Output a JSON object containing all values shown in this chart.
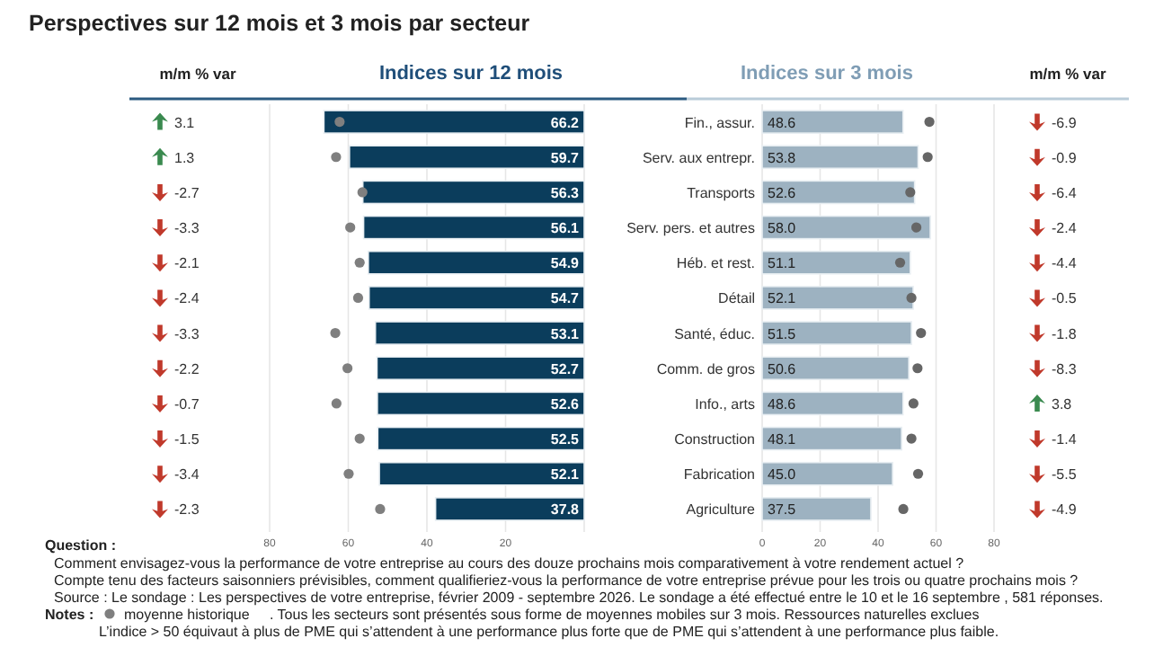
{
  "chart_data": [
    {
      "type": "other",
      "title": "Perspectives sur 12 mois et 3 mois par secteur",
      "annotations": [
        "Question :",
        "Comment envisagez-vous la performance de votre entreprise au cours des douze prochains mois comparativement à votre rendement actuel ?",
        "Compte tenu des facteurs saisonniers prévisibles, comment qualifieriez-vous la performance  de votre entreprise prévue pour les trois ou quatre prochains mois ?",
        "Source : Le sondage : Les perspectives de votre entreprise, février 2009 - septembre 2026. Le sondage a été effectué entre le 10 et le 16 septembre , 581 réponses.",
        "Notes :",
        ". Tous les secteurs sont présentés sous forme de moyennes mobiles sur 3 mois. Ressources naturelles exclues",
        "L’indice > 50 équivaut à plus de PME qui s’attendent à une performance plus forte que de PME qui s’attendent à une performance plus faible."
      ]
    },
    {
      "type": "other",
      "title": "m/m % var",
      "data_labels": true,
      "values": [
        3.1,
        1.3,
        -2.7,
        -3.3,
        -2.1,
        -2.4,
        -3.3,
        -2.2,
        -0.7,
        -1.5,
        -3.4,
        -2.3
      ],
      "colors": [
        "#3a8a4f",
        "#3a8a4f",
        "#c0392b",
        "#c0392b",
        "#c0392b",
        "#c0392b",
        "#c0392b",
        "#c0392b",
        "#c0392b",
        "#c0392b",
        "#c0392b",
        "#c0392b"
      ]
    },
    {
      "type": "bar",
      "orientation": "horizontal",
      "title": "Indices sur 12 mois",
      "xlim": [
        80,
        0
      ],
      "xticks": [
        80,
        60,
        40,
        20,
        {
          "value": 0,
          "label": null
        }
      ],
      "grid": "x",
      "marker": "circle",
      "legend": "bottom left",
      "series": [
        {
          "color": "#0b3d5c",
          "values": [
            66.2,
            59.7,
            56.3,
            56.1,
            54.9,
            54.7,
            53.1,
            52.7,
            52.6,
            52.5,
            52.1,
            37.8
          ],
          "value_labels": [
            "66.2",
            "59.7",
            "56.3",
            "56.1",
            "54.9",
            "54.7",
            "53.1",
            "52.7",
            "52.6",
            "52.5",
            "52.1",
            "37.8"
          ]
        },
        {
          "type": "scatter",
          "name": "moyenne historique",
          "color": "#7f7f7f",
          "values": [
            62.2,
            63.1,
            56.4,
            59.5,
            57.1,
            57.5,
            63.3,
            60.2,
            63.0,
            57.1,
            59.9,
            51.9
          ]
        }
      ]
    },
    {
      "type": "bar",
      "orientation": "horizontal",
      "title": "Indices sur 3 mois",
      "categories": [
        "Fin., assur.",
        "Serv. aux entrepr.",
        "Transports",
        "Serv. pers. et autres",
        "Héb. et rest.",
        "Détail",
        "Santé, éduc.",
        "Comm. de gros",
        "Info., arts",
        "Construction",
        "Fabrication",
        "Agriculture"
      ],
      "xlim": [
        0,
        80
      ],
      "xticks": [
        0,
        20,
        40,
        60,
        80
      ],
      "grid": "x",
      "marker": "circle",
      "series": [
        {
          "color": "#9db2c1",
          "values": [
            48.6,
            53.8,
            52.6,
            58.0,
            51.1,
            52.1,
            51.5,
            50.6,
            48.6,
            48.1,
            45.0,
            37.5
          ],
          "value_labels": [
            "48.6",
            "53.8",
            "52.6",
            "58.0",
            "51.1",
            "52.1",
            "51.5",
            "50.6",
            "48.6",
            "48.1",
            "45.0",
            "37.5"
          ]
        },
        {
          "type": "scatter",
          "color": "#666666",
          "values": [
            57.7,
            57.1,
            51.1,
            53.2,
            47.6,
            51.5,
            54.8,
            53.6,
            52.2,
            51.5,
            53.8,
            48.7
          ]
        }
      ]
    },
    {
      "type": "other",
      "title": "m/m % var",
      "data_labels": true,
      "values": [
        -6.9,
        -0.9,
        -6.4,
        -2.4,
        -4.4,
        -0.5,
        -1.8,
        -8.3,
        3.8,
        -1.4,
        -5.5,
        -4.9
      ],
      "colors": [
        "#c0392b",
        "#c0392b",
        "#c0392b",
        "#c0392b",
        "#c0392b",
        "#c0392b",
        "#c0392b",
        "#c0392b",
        "#3a8a4f",
        "#c0392b",
        "#c0392b",
        "#c0392b"
      ]
    }
  ]
}
